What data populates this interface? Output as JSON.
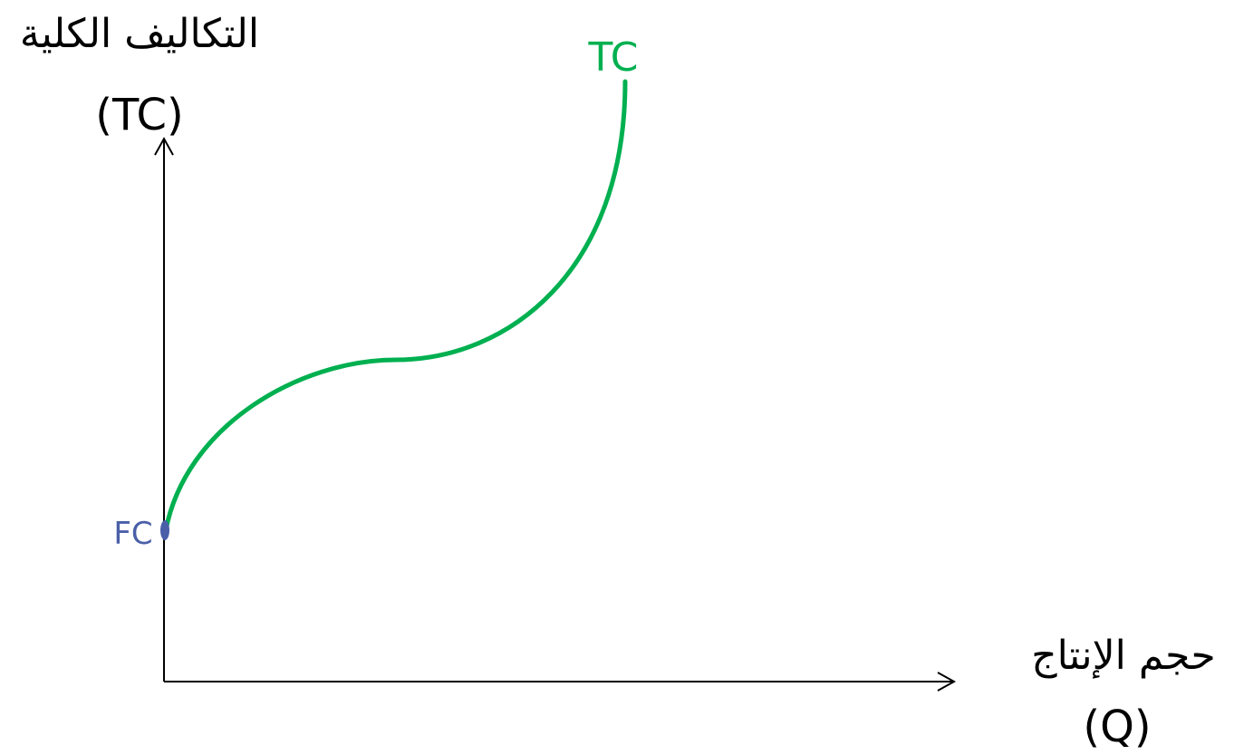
{
  "y_axis": {
    "label_line1": "التكاليف الكلية",
    "label_line2": "(TC)"
  },
  "x_axis": {
    "label_line1": "حجم الإنتاج",
    "label_line2": "(Q)"
  },
  "curve": {
    "label": "TC",
    "color": "#00b050"
  },
  "fixed_cost": {
    "label": "FC",
    "color": "#4a5fa8"
  },
  "axis_color": "#000000"
}
